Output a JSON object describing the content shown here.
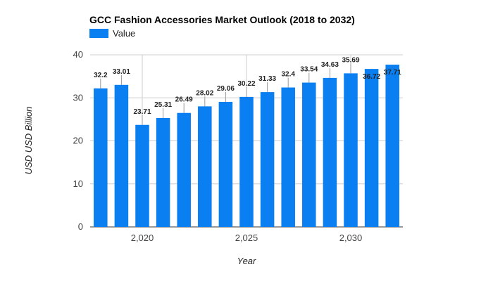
{
  "chart_data": {
    "type": "bar",
    "title": "GCC Fashion Accessories Market Outlook (2018 to 2032)",
    "xlabel": "Year",
    "ylabel": "USD USD Billion",
    "legend": {
      "position": "top-left",
      "entries": [
        "Value"
      ]
    },
    "grid": true,
    "ylim": [
      0,
      40
    ],
    "y_ticks": [
      "0",
      "10",
      "20",
      "30",
      "40"
    ],
    "x_ticks": [
      {
        "x": 2020,
        "label": "2,020"
      },
      {
        "x": 2025,
        "label": "2,025"
      },
      {
        "x": 2030,
        "label": "2,030"
      }
    ],
    "x": [
      2018,
      2019,
      2020,
      2021,
      2022,
      2023,
      2024,
      2025,
      2026,
      2027,
      2028,
      2029,
      2030,
      2031,
      2032
    ],
    "series": [
      {
        "name": "Value",
        "color": "#0a7ff2",
        "values": [
          32.2,
          33.01,
          23.71,
          25.31,
          26.49,
          28.02,
          29.06,
          30.22,
          31.33,
          32.4,
          33.54,
          34.63,
          35.69,
          36.72,
          37.71
        ],
        "labels": [
          "32.2",
          "33.01",
          "23.71",
          "25.31",
          "26.49",
          "28.02",
          "29.06",
          "30.22",
          "31.33",
          "32.4",
          "33.54",
          "34.63",
          "35.69",
          "36.72",
          "37.71"
        ]
      }
    ]
  }
}
